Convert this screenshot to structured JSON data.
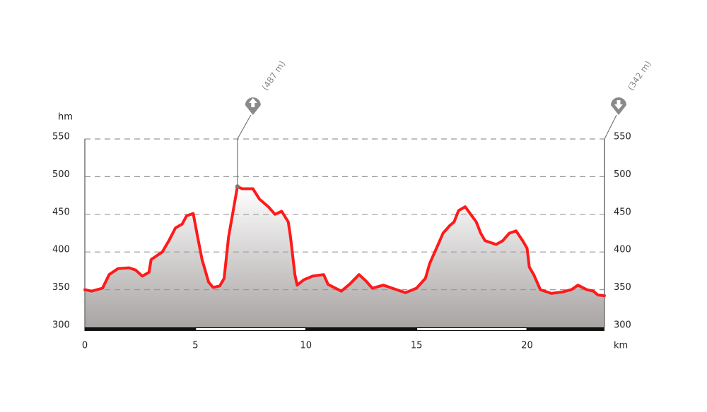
{
  "chart_data": {
    "type": "area",
    "y_axis_label": "hm",
    "x_axis_label": "km",
    "x": [
      0,
      0.3,
      0.8,
      1.1,
      1.5,
      2.0,
      2.3,
      2.6,
      2.9,
      3.0,
      3.5,
      3.8,
      4.1,
      4.4,
      4.6,
      4.9,
      5.1,
      5.3,
      5.6,
      5.8,
      6.1,
      6.3,
      6.5,
      6.8,
      6.9,
      7.1,
      7.6,
      7.9,
      8.3,
      8.6,
      8.9,
      9.2,
      9.3,
      9.5,
      9.6,
      9.9,
      10.3,
      10.8,
      11.0,
      11.6,
      12.0,
      12.4,
      12.7,
      13.0,
      13.5,
      14.1,
      14.5,
      15.0,
      15.4,
      15.6,
      15.9,
      16.2,
      16.5,
      16.7,
      16.9,
      17.2,
      17.5,
      17.7,
      17.9,
      18.1,
      18.6,
      18.9,
      19.2,
      19.5,
      19.8,
      20.0,
      20.1,
      20.3,
      20.6,
      21.1,
      21.6,
      22.0,
      22.3,
      22.7,
      23.0,
      23.2,
      23.5
    ],
    "values": [
      350,
      348,
      352,
      370,
      378,
      379,
      376,
      368,
      373,
      390,
      400,
      415,
      432,
      437,
      448,
      451,
      420,
      390,
      360,
      353,
      355,
      365,
      420,
      470,
      487,
      484,
      484,
      470,
      460,
      450,
      454,
      440,
      420,
      370,
      356,
      363,
      368,
      370,
      357,
      348,
      358,
      370,
      362,
      352,
      356,
      350,
      346,
      352,
      365,
      385,
      405,
      425,
      435,
      440,
      455,
      460,
      448,
      440,
      425,
      415,
      410,
      415,
      425,
      428,
      415,
      405,
      380,
      370,
      350,
      345,
      347,
      350,
      356,
      350,
      348,
      343,
      342
    ],
    "color": "#ff1a1a",
    "xlim": [
      0,
      23.5
    ],
    "xticks": [
      0,
      5,
      10,
      15,
      20
    ],
    "ylim": [
      300,
      550
    ],
    "yticks": [
      300,
      350,
      400,
      450,
      500,
      550
    ],
    "grid": true,
    "annotations": [
      {
        "text": "(487 m)",
        "kind": "max",
        "x": 6.9,
        "y": 487
      },
      {
        "text": "(342 m)",
        "kind": "min",
        "x": 23.5,
        "y": 342
      }
    ]
  }
}
